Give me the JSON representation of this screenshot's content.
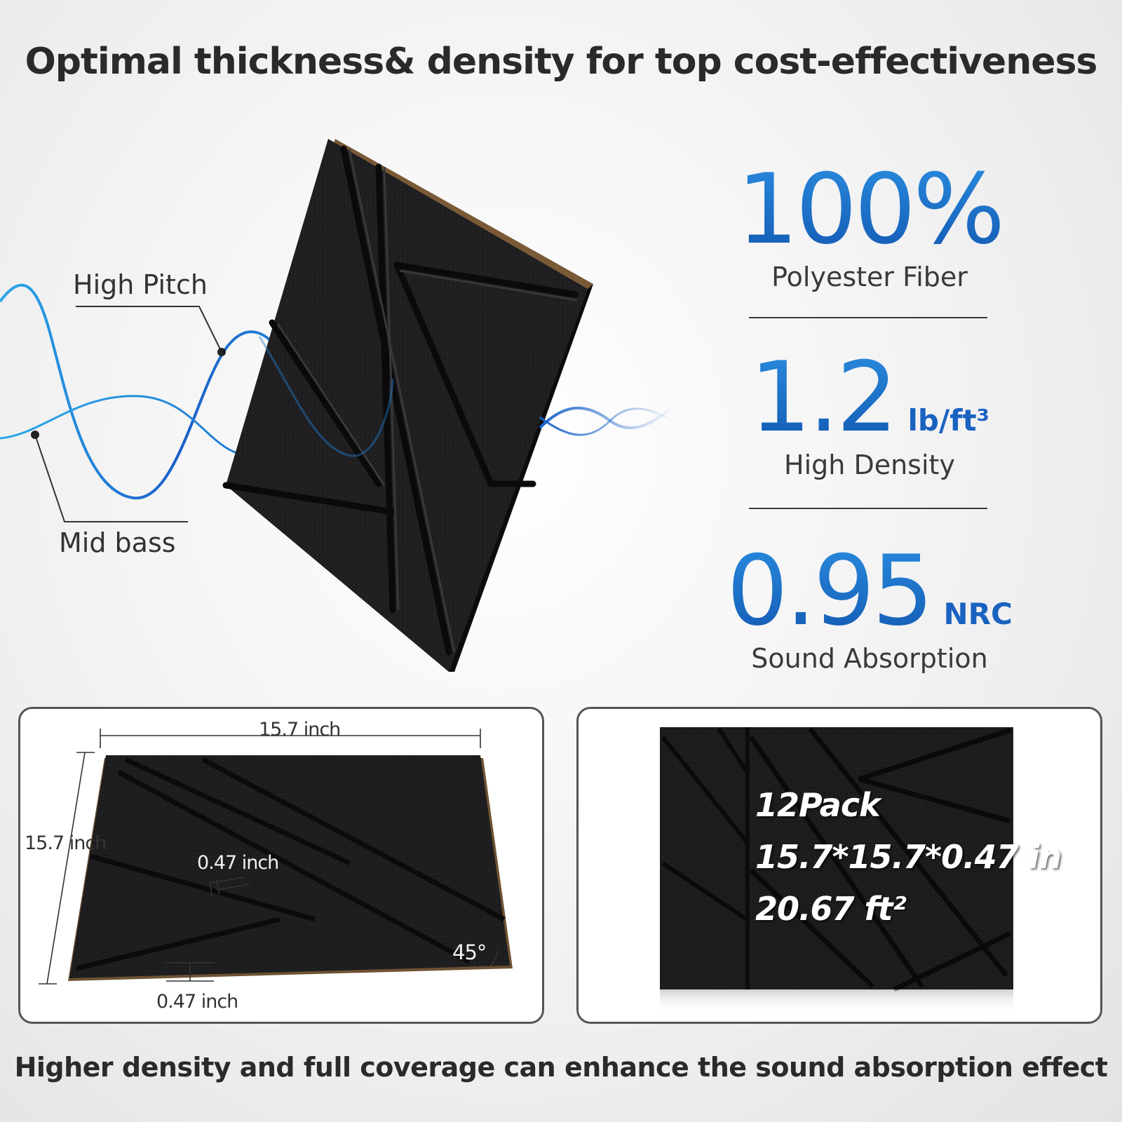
{
  "title": "Optimal thickness& density for top cost-effectiveness",
  "footer": "Higher density and full coverage can enhance the sound absorption effect",
  "wave_labels": {
    "high_pitch": "High Pitch",
    "mid_bass": "Mid bass"
  },
  "stats": [
    {
      "value": "100%",
      "unit": "",
      "caption": "Polyester Fiber"
    },
    {
      "value": "1.2",
      "unit": "lb/ft³",
      "caption": "High Density"
    },
    {
      "value": "0.95",
      "unit": "NRC",
      "caption": "Sound Absorption"
    }
  ],
  "dimensions": {
    "width": "15.7 inch",
    "height": "15.7 inch",
    "groove_depth": "0.47 inch",
    "thickness": "0.47 inch",
    "angle": "45°"
  },
  "pack": {
    "count": "12Pack",
    "size": "15.7*15.7*0.47 in",
    "area": "20.67 ft²"
  },
  "colors": {
    "accent_blue": "#1a62c0",
    "wave_blue": "#1f7fd0",
    "panel_black": "#1c1c1e",
    "headline": "#2a2a2a"
  }
}
